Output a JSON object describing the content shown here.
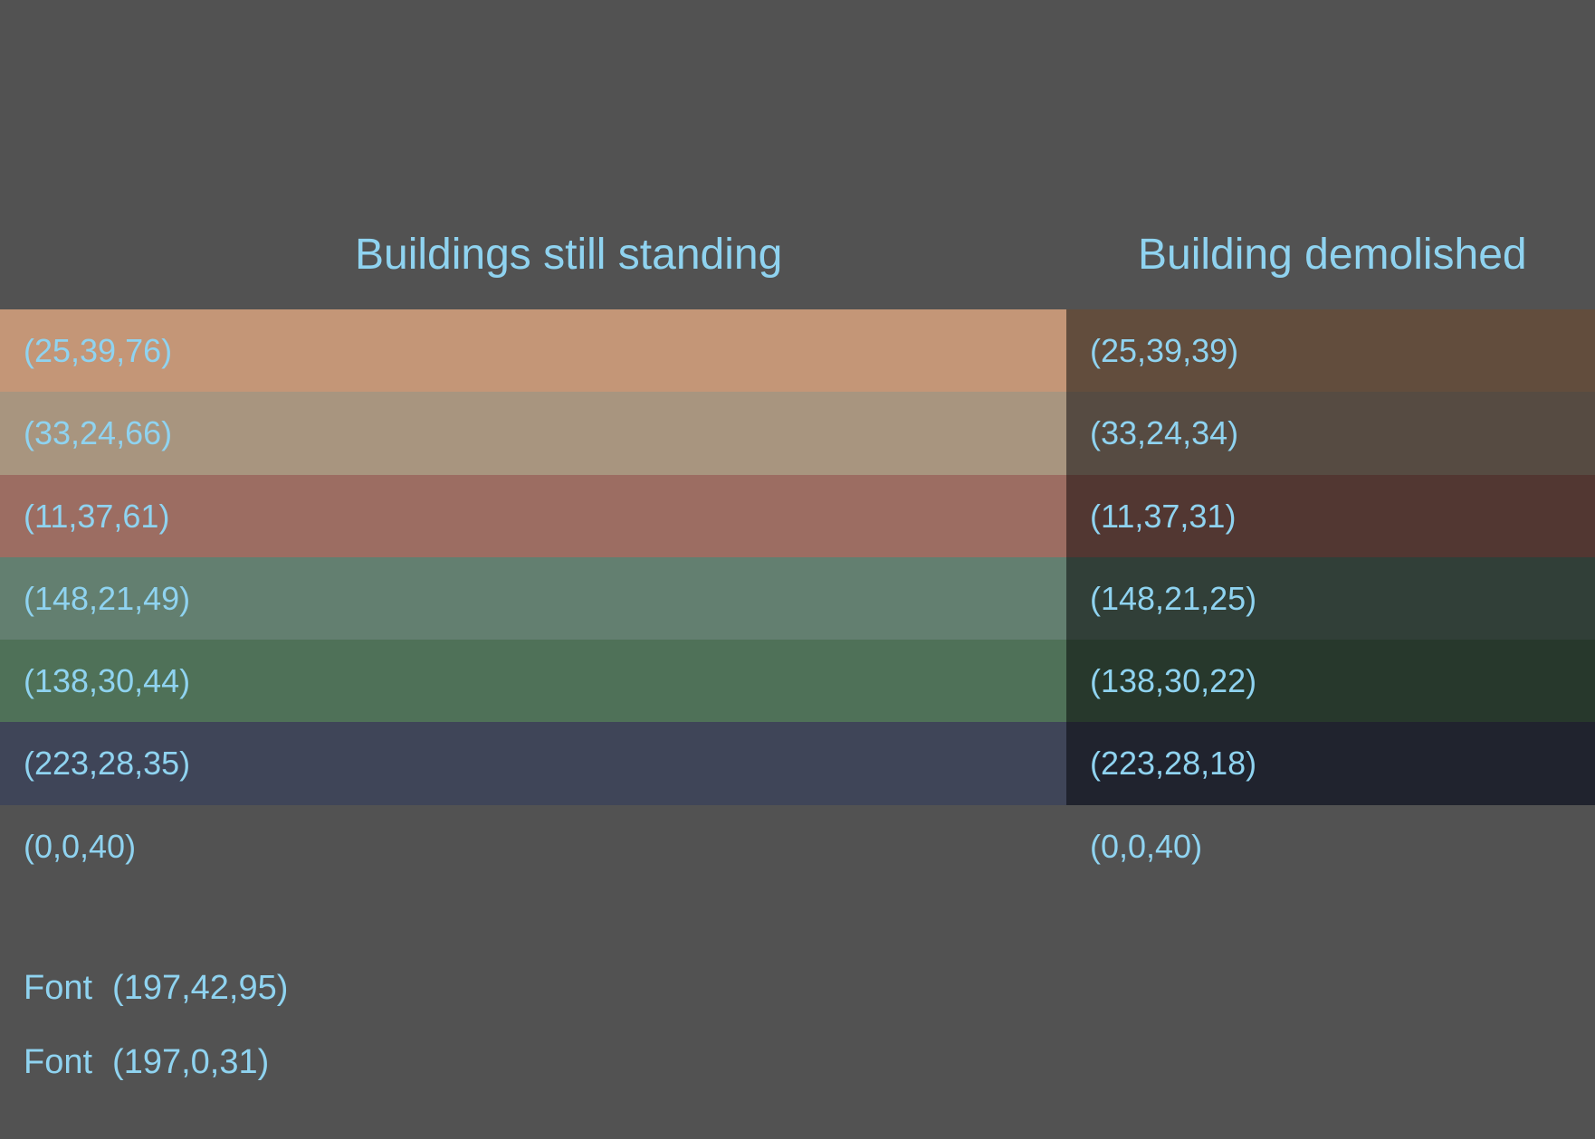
{
  "headings": {
    "standing": "Buildings still standing",
    "demolished": "Building demolished"
  },
  "rows": [
    {
      "standing": "(25,39,76)",
      "demolished": "(25,39,39)",
      "standing_color": "#c49677",
      "demolished_color": "#624d3d"
    },
    {
      "standing": "(33,24,66)",
      "demolished": "(33,24,34)",
      "standing_color": "#a8957f",
      "demolished_color": "#564b42"
    },
    {
      "standing": "(11,37,61)",
      "demolished": "(11,37,31)",
      "standing_color": "#9c6d62",
      "demolished_color": "#523732"
    },
    {
      "standing": "(148,21,49)",
      "demolished": "(148,21,25)",
      "standing_color": "#637f70",
      "demolished_color": "#313f38"
    },
    {
      "standing": "(138,30,44)",
      "demolished": "(138,30,22)",
      "standing_color": "#4f7158",
      "demolished_color": "#27382c"
    },
    {
      "standing": "(223,28,35)",
      "demolished": "(223,28,18)",
      "standing_color": "#3f4558",
      "demolished_color": "#20232e"
    },
    {
      "standing": "(0,0,40)",
      "demolished": "(0,0,40)",
      "standing_color": "#525252",
      "demolished_color": "#525252"
    }
  ],
  "fonts": [
    {
      "label": "Font",
      "value": "(197,42,95)"
    },
    {
      "label": "Font",
      "value": "(197,0,31)"
    }
  ],
  "colors": {
    "background": "#525252",
    "text": "#8fd3f0"
  }
}
